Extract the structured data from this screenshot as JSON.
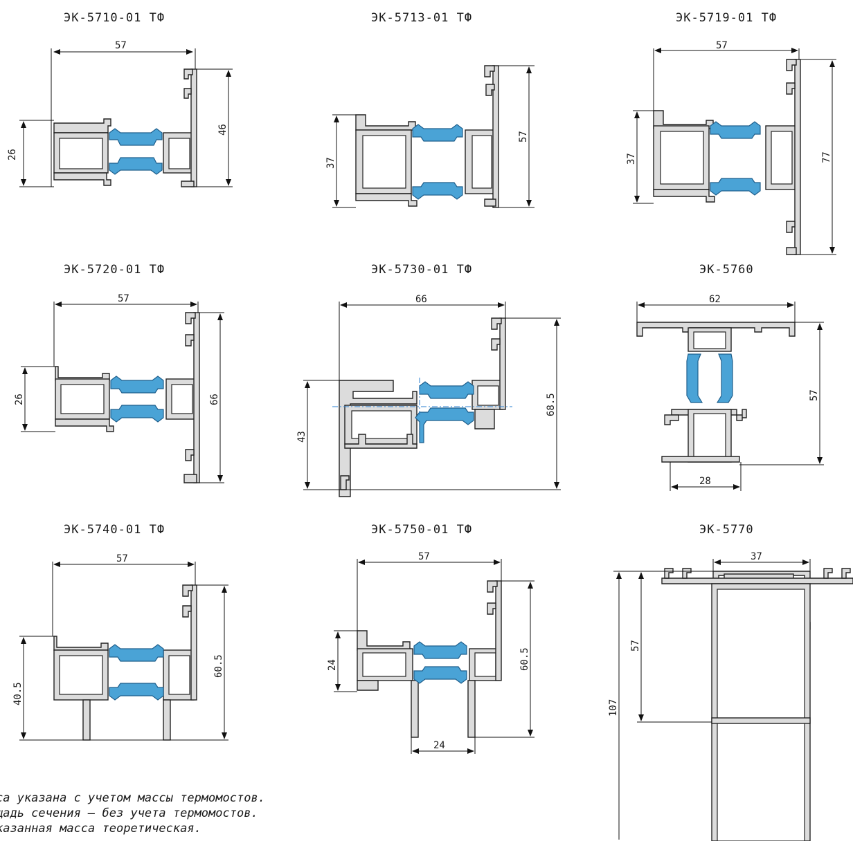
{
  "profiles": [
    {
      "code": "ЭК-5710-01 ТФ",
      "dims": [
        "57",
        "26",
        "46"
      ]
    },
    {
      "code": "ЭК-5713-01 ТФ",
      "dims": [
        "37",
        "57"
      ]
    },
    {
      "code": "ЭК-5719-01 ТФ",
      "dims": [
        "57",
        "37",
        "77"
      ]
    },
    {
      "code": "ЭК-5720-01 ТФ",
      "dims": [
        "57",
        "26",
        "66"
      ]
    },
    {
      "code": "ЭК-5730-01 ТФ",
      "dims": [
        "66",
        "43",
        "68.5"
      ]
    },
    {
      "code": "ЭК-5760",
      "dims": [
        "62",
        "57",
        "28"
      ]
    },
    {
      "code": "ЭК-5740-01 ТФ",
      "dims": [
        "57",
        "40.5",
        "60.5"
      ]
    },
    {
      "code": "ЭК-5750-01 ТФ",
      "dims": [
        "57",
        "24",
        "60.5",
        "24"
      ]
    },
    {
      "code": "ЭК-5770",
      "dims": [
        "37",
        "57",
        "107"
      ]
    }
  ],
  "notes": [
    "са указана с учетом массы термомостов.",
    "щадь сечения – без учета термомостов.",
    "казанная масса теоретическая."
  ],
  "colors": {
    "thermal_break": "#4aa3d6",
    "aluminium": "#dcdcdc",
    "axis": "#2a7fd0"
  }
}
